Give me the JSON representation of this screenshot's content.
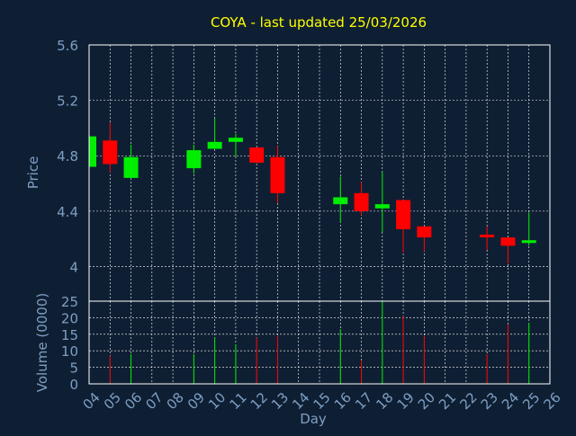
{
  "colors": {
    "background": "#0f1f33",
    "title": "#ffff00",
    "axis_text": "#7e9fc4",
    "frame": "#ffffff",
    "grid": "#ffffff",
    "up": "#00ee00",
    "down": "#ff0000"
  },
  "chart_data": [
    {
      "type": "candlestick",
      "title": "COYA - last updated 25/03/2026",
      "ylabel": "Price",
      "ylim": [
        3.75,
        5.6
      ],
      "yticks": [
        4,
        4.4,
        4.8,
        5.2,
        5.6
      ],
      "ytick_labels": [
        "4",
        "4.4",
        "4.8",
        "5.2",
        "5.6"
      ],
      "grid": true,
      "candles": [
        {
          "day": 4,
          "open": 4.72,
          "high": 4.94,
          "low": 4.72,
          "close": 4.94
        },
        {
          "day": 5,
          "open": 4.91,
          "high": 5.04,
          "low": 4.68,
          "close": 4.74
        },
        {
          "day": 6,
          "open": 4.64,
          "high": 4.88,
          "low": 4.64,
          "close": 4.79
        },
        {
          "day": 9,
          "open": 4.71,
          "high": 4.88,
          "low": 4.67,
          "close": 4.84
        },
        {
          "day": 10,
          "open": 4.85,
          "high": 5.07,
          "low": 4.85,
          "close": 4.9
        },
        {
          "day": 11,
          "open": 4.9,
          "high": 4.96,
          "low": 4.79,
          "close": 4.93
        },
        {
          "day": 12,
          "open": 4.86,
          "high": 4.86,
          "low": 4.74,
          "close": 4.75
        },
        {
          "day": 13,
          "open": 4.79,
          "high": 4.87,
          "low": 4.46,
          "close": 4.53
        },
        {
          "day": 16,
          "open": 4.45,
          "high": 4.65,
          "low": 4.32,
          "close": 4.5
        },
        {
          "day": 17,
          "open": 4.53,
          "high": 4.61,
          "low": 4.37,
          "close": 4.4
        },
        {
          "day": 18,
          "open": 4.42,
          "high": 4.68,
          "low": 4.25,
          "close": 4.45
        },
        {
          "day": 19,
          "open": 4.48,
          "high": 4.48,
          "low": 4.1,
          "close": 4.27
        },
        {
          "day": 20,
          "open": 4.29,
          "high": 4.29,
          "low": 4.11,
          "close": 4.21
        },
        {
          "day": 23,
          "open": 4.23,
          "high": 4.29,
          "low": 4.12,
          "close": 4.22
        },
        {
          "day": 24,
          "open": 4.21,
          "high": 4.21,
          "low": 4.02,
          "close": 4.15
        },
        {
          "day": 25,
          "open": 4.17,
          "high": 4.39,
          "low": 4.15,
          "close": 4.19
        }
      ]
    },
    {
      "type": "bar",
      "ylabel": "Volume (0000)",
      "xlabel": "Day",
      "ylim": [
        0,
        25
      ],
      "yticks": [
        0,
        5,
        10,
        15,
        20,
        25
      ],
      "ytick_labels": [
        "0",
        "5",
        "10",
        "15",
        "20",
        "25"
      ],
      "xlim": [
        4,
        26
      ],
      "xticks": [
        4,
        5,
        6,
        7,
        8,
        9,
        10,
        11,
        12,
        13,
        14,
        15,
        16,
        17,
        18,
        19,
        20,
        21,
        22,
        23,
        24,
        25,
        26
      ],
      "xtick_labels": [
        "04",
        "05",
        "06",
        "07",
        "08",
        "09",
        "10",
        "11",
        "12",
        "13",
        "14",
        "15",
        "16",
        "17",
        "18",
        "19",
        "20",
        "21",
        "22",
        "23",
        "24",
        "25",
        "26"
      ],
      "grid": true,
      "bars": [
        {
          "day": 5,
          "value": 8.5,
          "direction": "down"
        },
        {
          "day": 6,
          "value": 9.0,
          "direction": "up"
        },
        {
          "day": 9,
          "value": 9.0,
          "direction": "up"
        },
        {
          "day": 10,
          "value": 14.0,
          "direction": "up"
        },
        {
          "day": 11,
          "value": 12.0,
          "direction": "up"
        },
        {
          "day": 12,
          "value": 14.0,
          "direction": "down"
        },
        {
          "day": 13,
          "value": 14.5,
          "direction": "down"
        },
        {
          "day": 16,
          "value": 16.5,
          "direction": "up"
        },
        {
          "day": 17,
          "value": 7.0,
          "direction": "down"
        },
        {
          "day": 18,
          "value": 25.0,
          "direction": "up"
        },
        {
          "day": 19,
          "value": 20.5,
          "direction": "down"
        },
        {
          "day": 20,
          "value": 14.5,
          "direction": "down"
        },
        {
          "day": 23,
          "value": 9.0,
          "direction": "down"
        },
        {
          "day": 24,
          "value": 18.0,
          "direction": "down"
        },
        {
          "day": 25,
          "value": 18.5,
          "direction": "up"
        }
      ]
    }
  ]
}
